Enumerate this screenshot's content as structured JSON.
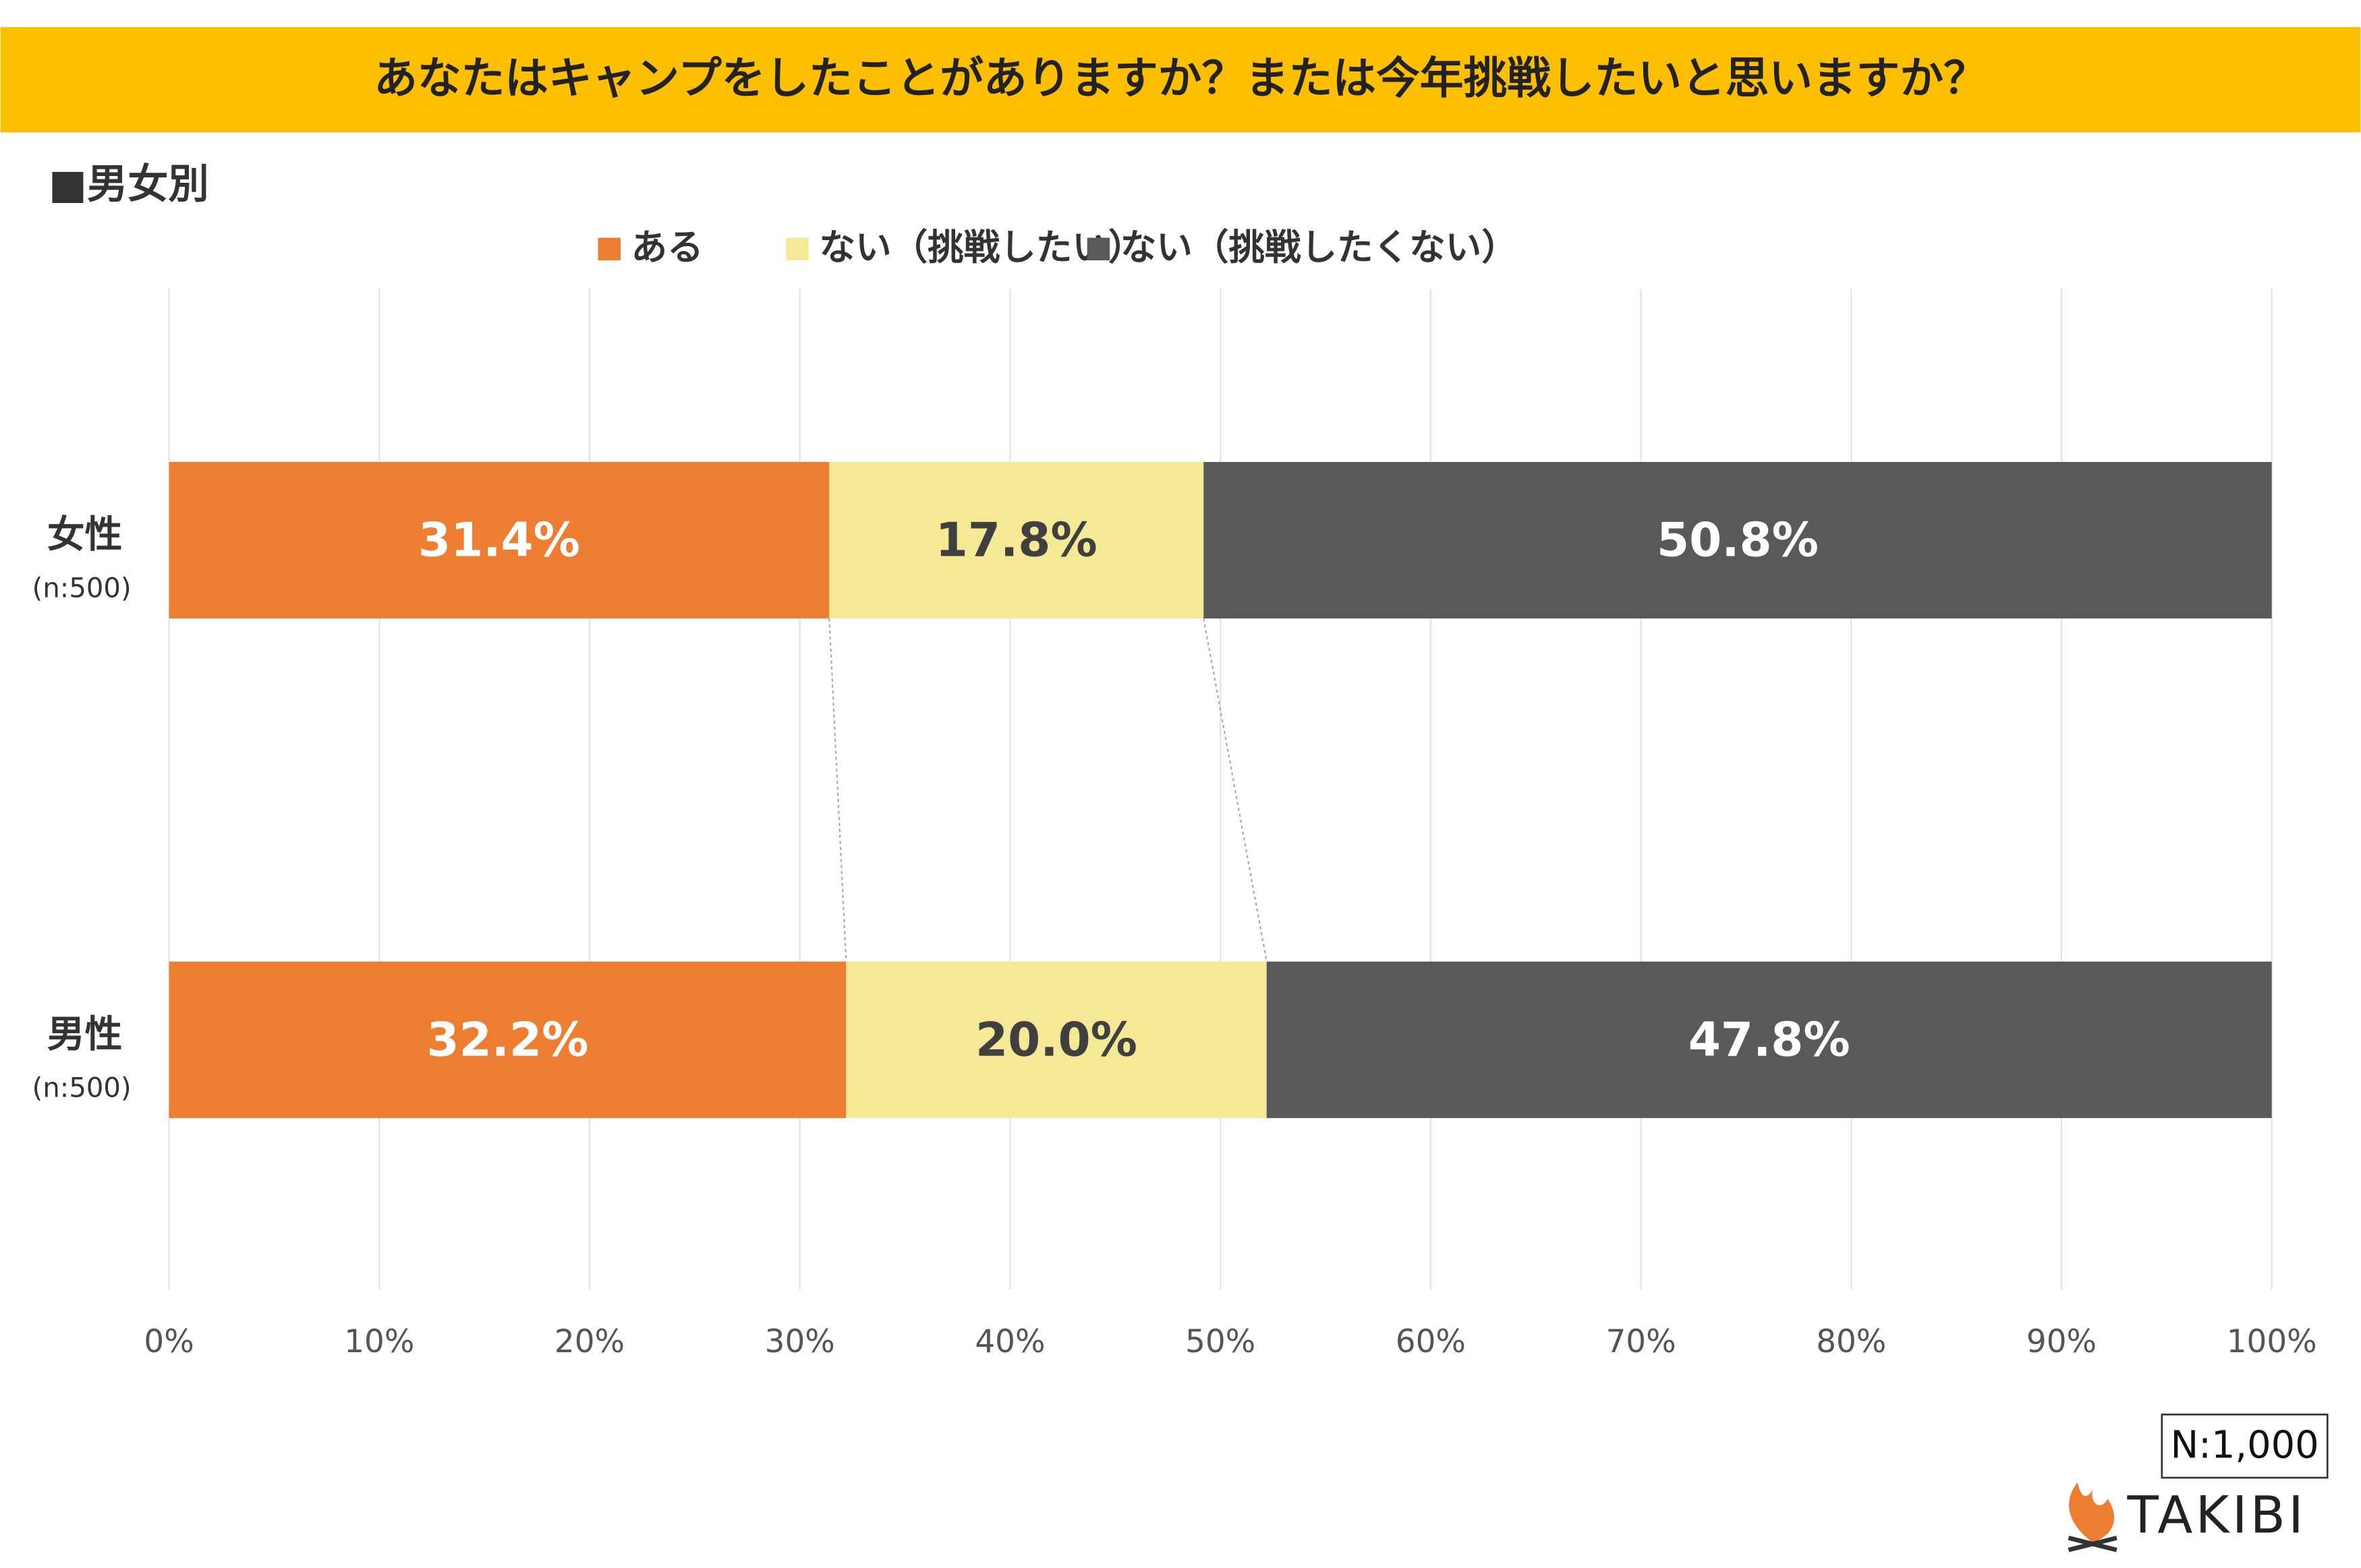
{
  "chart_data": {
    "type": "stacked-bar-horizontal",
    "title": "あなたはキャンプをしたことがありますか？または今年挑戦したいと思いますか？",
    "subtitle": "■男女別",
    "categories": [
      "女性",
      "男性"
    ],
    "category_notes": [
      "(n:500)",
      "(n:500)"
    ],
    "series": [
      {
        "name": "ある",
        "color": "#ed7d31",
        "label_color": "#ffffff",
        "values": [
          31.4,
          32.2
        ],
        "value_labels": [
          "31.4%",
          "32.2%"
        ]
      },
      {
        "name": "ない（挑戦したい）",
        "color": "#f5e996",
        "label_color": "#404040",
        "values": [
          17.8,
          20.0
        ],
        "value_labels": [
          "17.8%",
          "20.0%"
        ]
      },
      {
        "name": "ない（挑戦したくない）",
        "color": "#595959",
        "label_color": "#ffffff",
        "values": [
          50.8,
          47.8
        ],
        "value_labels": [
          "50.8%",
          "47.8%"
        ]
      }
    ],
    "xlim": [
      0,
      100
    ],
    "xticks": [
      {
        "value": 0,
        "label": "0%"
      },
      {
        "value": 10,
        "label": "10%"
      },
      {
        "value": 20,
        "label": "20%"
      },
      {
        "value": 30,
        "label": "30%"
      },
      {
        "value": 40,
        "label": "40%"
      },
      {
        "value": 50,
        "label": "50%"
      },
      {
        "value": 60,
        "label": "60%"
      },
      {
        "value": 70,
        "label": "70%"
      },
      {
        "value": 80,
        "label": "80%"
      },
      {
        "value": 90,
        "label": "90%"
      },
      {
        "value": 100,
        "label": "100%"
      }
    ],
    "grid": true,
    "legend": "top",
    "note": "N:1,000",
    "brand": "TAKIBI"
  }
}
